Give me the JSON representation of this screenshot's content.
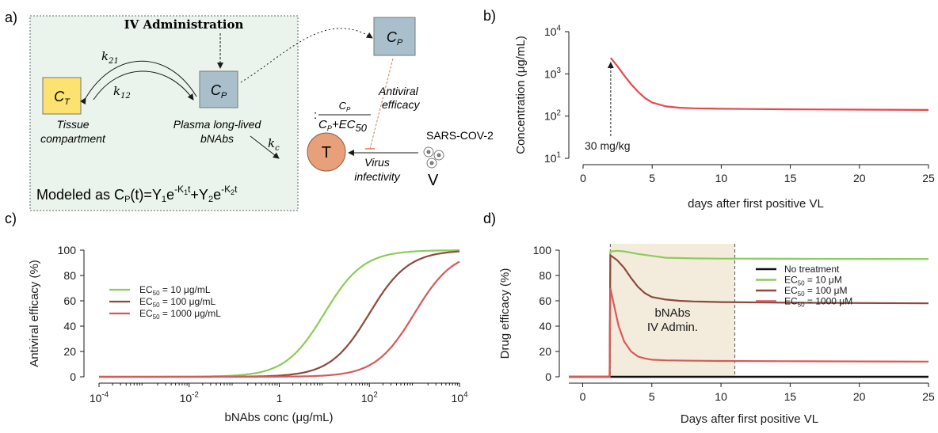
{
  "panel_labels": {
    "a": "a)",
    "b": "b)",
    "c": "c)",
    "d": "d)"
  },
  "diagram": {
    "iv_administration": "IV Administration",
    "plasma_top_box": "C",
    "plasma_top_sub": "P",
    "tissue_box": "C",
    "tissue_sub": "T",
    "plasma_box": "C",
    "plasma_sub": "P",
    "k21": "k",
    "k21_sub": "21",
    "k12": "k",
    "k12_sub": "12",
    "kc": "k",
    "kc_sub": "c",
    "tissue_label_1": "Tissue",
    "tissue_label_2": "compartment",
    "plasma_label_1": "Plasma long-lived",
    "plasma_label_2": "bNAbs",
    "antiviral_1": "Antiviral",
    "antiviral_2": "efficacy",
    "fraction_prefix": ":",
    "fraction_num": "C",
    "fraction_num_sub": "P",
    "fraction_den": "C",
    "fraction_den_sub": "P",
    "fraction_den_rest": "+EC",
    "fraction_den_rest_sub": "50",
    "sars": "SARS-COV-2",
    "target": "T",
    "virus_1": "Virus",
    "virus_2": "infectivity",
    "virus_v": "V",
    "model_prefix": "Modeled as C",
    "model_sub_p": "P",
    "model_t": "(t)=Y",
    "model_y1sub": "1",
    "model_e1": "e",
    "model_k1": "-K",
    "model_k1sub": "1",
    "model_t1": "t",
    "model_plus": "+Y",
    "model_y2sub": "2",
    "model_e2": "e",
    "model_k2": "-K",
    "model_k2sub": "2",
    "model_t2": "t",
    "colors": {
      "box_fill": "#a9bfcc",
      "tissue_fill": "#fbe271",
      "target_fill": "#e8a07a",
      "panel_bg": "#eaf4ec"
    }
  },
  "chart_data": [
    {
      "id": "b",
      "type": "line",
      "ylabel": "Concentration (μg/mL)",
      "xlabel": "days after first positive VL",
      "xlim": [
        0,
        25
      ],
      "xticks": [
        "0",
        "5",
        "10",
        "15",
        "20",
        "25"
      ],
      "yscale": "log",
      "ylim": [
        10,
        10000
      ],
      "yticks": [
        {
          "base": "10",
          "exp": "4"
        },
        {
          "base": "10",
          "exp": "3"
        },
        {
          "base": "10",
          "exp": "2"
        },
        {
          "base": "10",
          "exp": "1"
        }
      ],
      "annotation": "30 mg/kg",
      "series": [
        {
          "color": "#e8474d",
          "x": [
            2,
            2.5,
            3,
            3.5,
            4,
            4.5,
            5,
            6,
            7,
            8,
            10,
            12,
            15,
            20,
            25
          ],
          "y": [
            2400,
            1500,
            900,
            560,
            370,
            265,
            210,
            170,
            158,
            153,
            149,
            147,
            145,
            142,
            140
          ]
        }
      ]
    },
    {
      "id": "c",
      "type": "line",
      "ylabel": "Antiviral efficacy (%)",
      "xlabel": "bNAbs conc (μg/mL)",
      "xscale": "log",
      "xlim": [
        0.0001,
        10000
      ],
      "xticks": [
        {
          "base": "10",
          "exp": "-4"
        },
        {
          "base": "10",
          "exp": "-2"
        },
        {
          "base": "1",
          "exp": ""
        },
        {
          "base": "10",
          "exp": "2"
        },
        {
          "base": "10",
          "exp": "4"
        }
      ],
      "ylim": [
        0,
        100
      ],
      "yticks": [
        "0",
        "20",
        "40",
        "60",
        "80",
        "100"
      ],
      "legend_position": "left",
      "series": [
        {
          "name": "EC",
          "name_sub": "50",
          "name_rest": " = 10 μg/mL",
          "color": "#8ccc5a",
          "ec50": 10
        },
        {
          "name": "EC",
          "name_sub": "50",
          "name_rest": " = 100 μg/mL",
          "color": "#8b4a3c",
          "ec50": 100
        },
        {
          "name": "EC",
          "name_sub": "50",
          "name_rest": " = 1000 μg/mL",
          "color": "#d65a5a",
          "ec50": 1000
        }
      ]
    },
    {
      "id": "d",
      "type": "line",
      "ylabel": "Drug efficacy (%)",
      "xlabel": "Days after first positive VL",
      "xlim": [
        -1,
        25
      ],
      "xticks": [
        "0",
        "5",
        "10",
        "15",
        "20",
        "25"
      ],
      "ylim": [
        0,
        100
      ],
      "yticks": [
        "0",
        "20",
        "40",
        "60",
        "80",
        "100"
      ],
      "shade": {
        "from": 2,
        "to": 11,
        "label_1": "bNAbs",
        "label_2": "IV Admin.",
        "color": "#f3ecdc"
      },
      "legend_position": "right",
      "series": [
        {
          "name": "No treatment",
          "name_sub": "",
          "name_rest": "",
          "color": "#111111",
          "x": [
            -1,
            25
          ],
          "y": [
            0,
            0
          ]
        },
        {
          "name": "EC",
          "name_sub": "50",
          "name_rest": " = 10 μM",
          "color": "#8ccc5a",
          "x": [
            -1,
            1.95,
            2,
            2.5,
            3,
            4,
            5,
            6,
            8,
            10,
            15,
            25
          ],
          "y": [
            0,
            0,
            99,
            99.5,
            99,
            97,
            95.5,
            94,
            93.5,
            93.3,
            93.2,
            93
          ]
        },
        {
          "name": "EC",
          "name_sub": "50",
          "name_rest": " = 100 μM",
          "color": "#8b4a3c",
          "x": [
            -1,
            1.95,
            2,
            2.5,
            3,
            3.5,
            4,
            4.5,
            5,
            6,
            7,
            8,
            10,
            15,
            25
          ],
          "y": [
            0,
            0,
            96,
            92,
            86,
            78,
            71,
            66,
            63,
            61,
            60,
            59.5,
            59,
            58.5,
            58
          ]
        },
        {
          "name": "EC",
          "name_sub": "50",
          "name_rest": " = 1000 μM",
          "color": "#d65a5a",
          "x": [
            -1,
            1.95,
            2,
            2.3,
            2.6,
            3,
            3.5,
            4,
            4.5,
            5,
            6,
            8,
            10,
            15,
            25
          ],
          "y": [
            0,
            0,
            70,
            55,
            40,
            28,
            20,
            16,
            14.5,
            13.5,
            13,
            12.7,
            12.5,
            12.3,
            12
          ]
        }
      ]
    }
  ]
}
